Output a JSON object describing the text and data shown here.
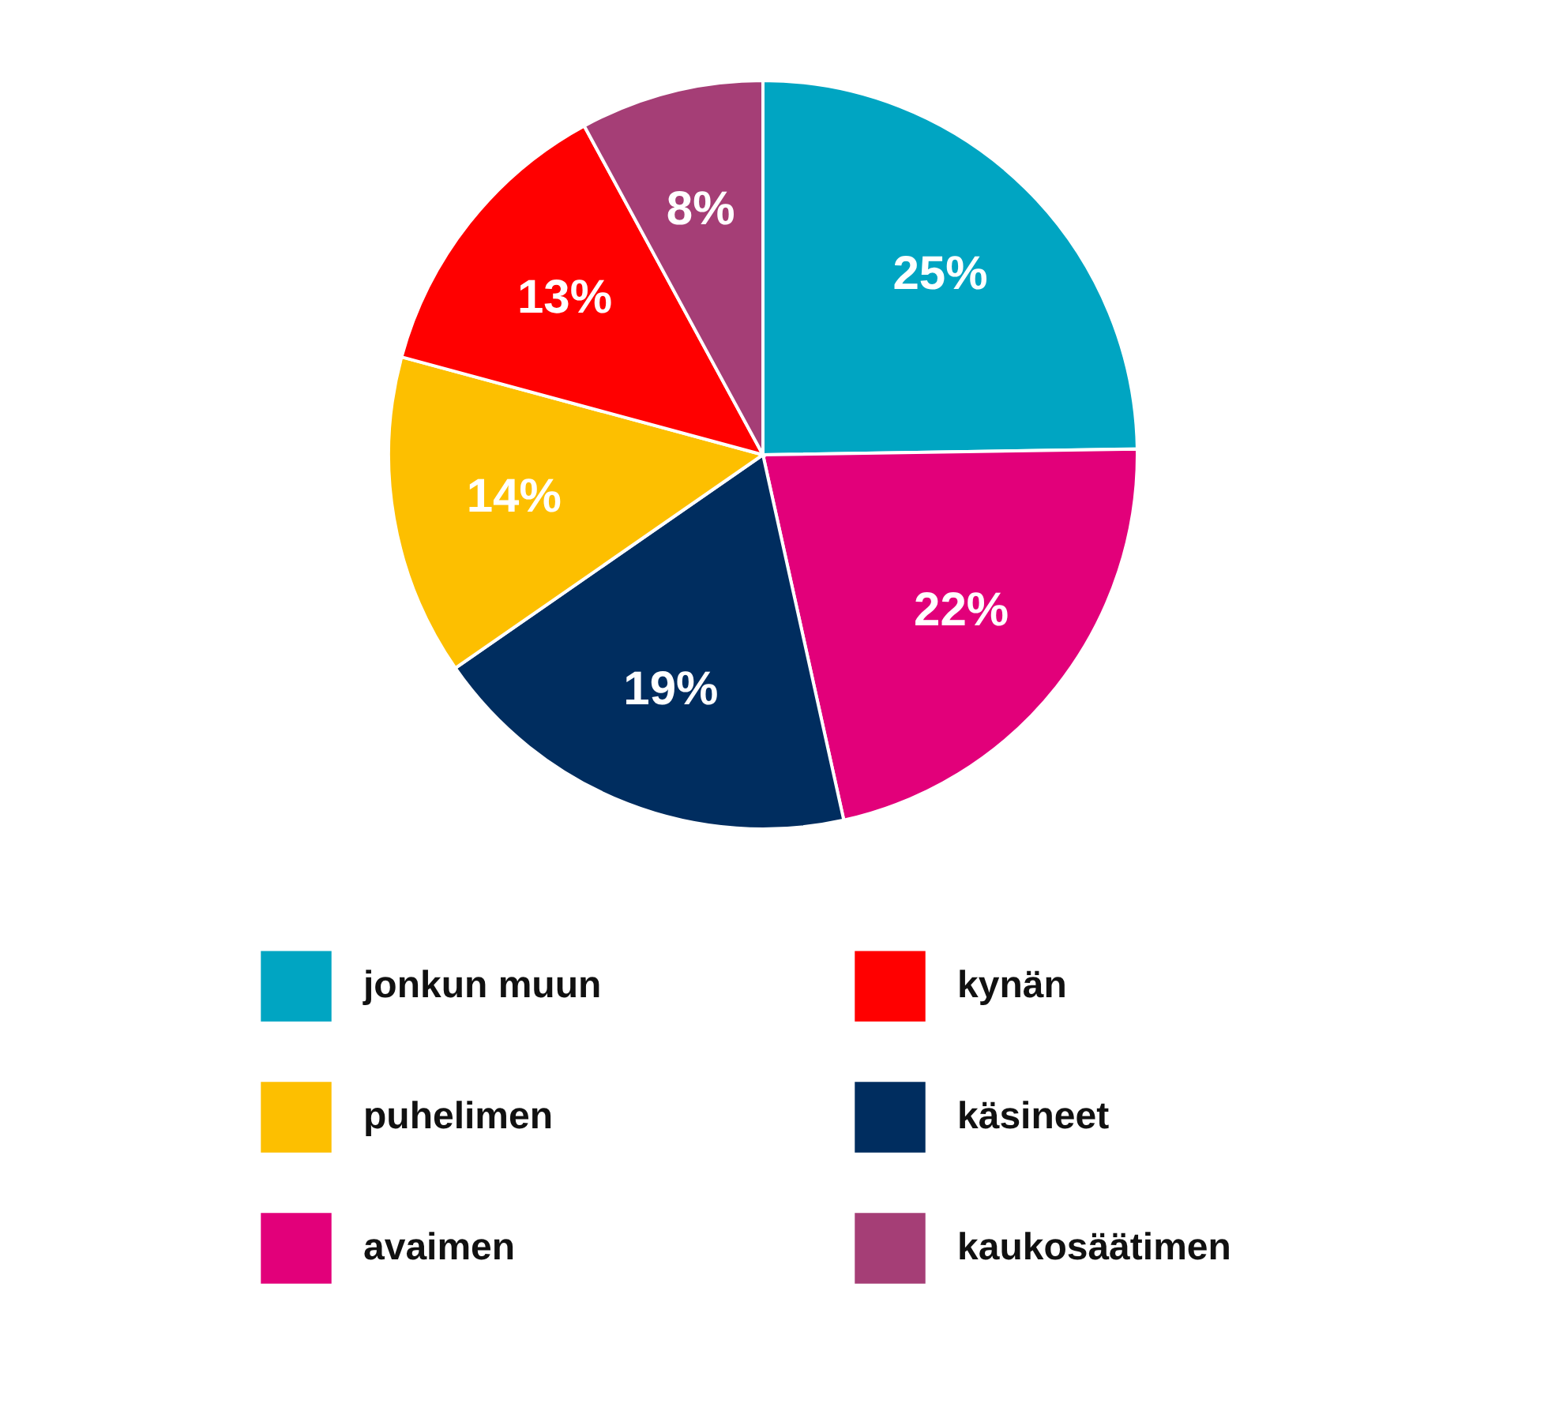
{
  "chart_data": {
    "type": "pie",
    "categories": [
      "jonkun muun",
      "avaimen",
      "käsineet",
      "puhelimen",
      "kynän",
      "kaukosäätimen"
    ],
    "values": [
      25,
      22,
      19,
      14,
      13,
      8
    ],
    "value_labels": [
      "25%",
      "22%",
      "19%",
      "14%",
      "13%",
      "8%"
    ],
    "colors": [
      "#00a5c2",
      "#e2007a",
      "#002d5f",
      "#fdbf00",
      "#ff0000",
      "#a53e76"
    ],
    "legend": "bottom"
  }
}
